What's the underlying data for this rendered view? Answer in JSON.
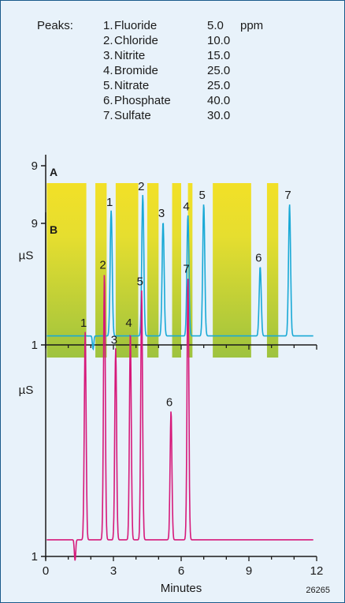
{
  "peak_table": {
    "header": "Peaks:",
    "unit": "ppm",
    "rows": [
      {
        "num": "1.",
        "name": "Fluoride",
        "conc": "5.0"
      },
      {
        "num": "2.",
        "name": "Chloride",
        "conc": "10.0"
      },
      {
        "num": "3.",
        "name": "Nitrite",
        "conc": "15.0"
      },
      {
        "num": "4.",
        "name": "Bromide",
        "conc": "25.0"
      },
      {
        "num": "5.",
        "name": "Nitrate",
        "conc": "25.0"
      },
      {
        "num": "6.",
        "name": "Phosphate",
        "conc": "40.0"
      },
      {
        "num": "7.",
        "name": "Sulfate",
        "conc": "30.0"
      }
    ]
  },
  "figure_id": "26265",
  "colors": {
    "trace_a": "#19a9d6",
    "trace_b": "#d6197a",
    "window_top": "#f2e027",
    "window_bottom": "#9ec33e",
    "frame": "#1a5a8a",
    "background": "#e8f2fa"
  },
  "chart_data": [
    {
      "type": "line",
      "panel_label": "A",
      "ylabel": "µS",
      "ylim": [
        1,
        9
      ],
      "yticks": [
        "1",
        "9"
      ],
      "xlim": [
        0,
        12
      ],
      "xticks": [],
      "baseline": 1.4,
      "series": [
        {
          "peaks": [
            {
              "label": "1",
              "time": 2.9,
              "height": 7.0
            },
            {
              "label": "2",
              "time": 4.3,
              "height": 7.7
            },
            {
              "label": "3",
              "time": 5.2,
              "height": 6.5
            },
            {
              "label": "4",
              "time": 6.3,
              "height": 6.8
            },
            {
              "label": "5",
              "time": 7.0,
              "height": 7.3
            },
            {
              "label": "6",
              "time": 9.5,
              "height": 4.5
            },
            {
              "label": "7",
              "time": 10.8,
              "height": 7.3
            }
          ],
          "dip": {
            "time": 2.1,
            "depth": 0.6
          }
        }
      ],
      "windows": [
        [
          0.05,
          1.8
        ],
        [
          2.2,
          2.7
        ],
        [
          3.1,
          4.1
        ],
        [
          4.5,
          5.0
        ],
        [
          5.6,
          6.0
        ],
        [
          6.3,
          6.5
        ],
        [
          7.4,
          9.1
        ],
        [
          9.8,
          10.3
        ]
      ]
    },
    {
      "type": "line",
      "panel_label": "B",
      "ylabel": "µS",
      "ylim": [
        1,
        9
      ],
      "yticks": [
        "1",
        "9"
      ],
      "xlim": [
        0,
        12
      ],
      "xticks": [
        "0",
        "3",
        "6",
        "9",
        "12"
      ],
      "xlabel": "Minutes",
      "baseline": 1.4,
      "series": [
        {
          "peaks": [
            {
              "label": "1",
              "time": 1.75,
              "height": 6.4
            },
            {
              "label": "2",
              "time": 2.6,
              "height": 7.8
            },
            {
              "label": "3",
              "time": 3.1,
              "height": 6.0
            },
            {
              "label": "4",
              "time": 3.75,
              "height": 6.4
            },
            {
              "label": "5",
              "time": 4.25,
              "height": 7.4
            },
            {
              "label": "6",
              "time": 5.55,
              "height": 4.5
            },
            {
              "label": "7",
              "time": 6.3,
              "height": 7.7
            }
          ],
          "dip": {
            "time": 1.3,
            "depth": 0.5
          }
        }
      ]
    }
  ]
}
